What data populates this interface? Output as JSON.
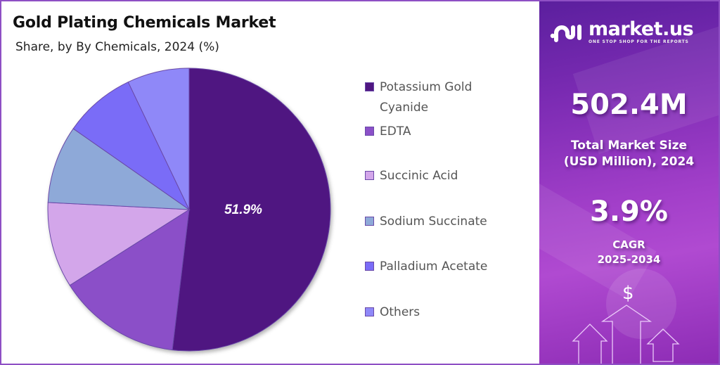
{
  "header": {
    "title": "Gold Plating Chemicals Market",
    "subtitle": "Share, by By Chemicals, 2024 (%)"
  },
  "chart_data": {
    "type": "pie",
    "title": "Gold Plating Chemicals Market",
    "subtitle": "Share, by By Chemicals, 2024 (%)",
    "categories": [
      "Potassium Gold Cyanide",
      "EDTA",
      "Succinic Acid",
      "Sodium Succinate",
      "Palladium Acetate",
      "Others"
    ],
    "values": [
      51.9,
      14.1,
      9.8,
      8.9,
      8.2,
      7.1
    ],
    "colors": [
      "#4f1681",
      "#8b50c8",
      "#d3a6ea",
      "#8ea9d8",
      "#7a6cf7",
      "#8f88f8"
    ],
    "data_labels": [
      "51.9%",
      "",
      "",
      "",
      "",
      ""
    ],
    "legend_position": "right",
    "start_angle_deg": 0,
    "direction": "clockwise"
  },
  "legend": {
    "items": [
      {
        "label_line1": "Potassium Gold",
        "label_line2": "Cyanide",
        "color": "#4f1681"
      },
      {
        "label_line1": "EDTA",
        "label_line2": "",
        "color": "#8b50c8"
      },
      {
        "label_line1": "Succinic Acid",
        "label_line2": "",
        "color": "#d3a6ea"
      },
      {
        "label_line1": "Sodium Succinate",
        "label_line2": "",
        "color": "#8ea9d8"
      },
      {
        "label_line1": "Palladium Acetate",
        "label_line2": "",
        "color": "#7a6cf7"
      },
      {
        "label_line1": "Others",
        "label_line2": "",
        "color": "#8f88f8"
      }
    ]
  },
  "brand": {
    "name": "market.us",
    "tagline": "ONE STOP SHOP FOR THE REPORTS"
  },
  "stats": {
    "market_size_value": "502.4M",
    "market_size_label_line1": "Total Market Size",
    "market_size_label_line2": "(USD Million), 2024",
    "cagr_value": "3.9%",
    "cagr_label_line1": "CAGR",
    "cagr_label_line2": "2025-2034",
    "currency_symbol": "$"
  },
  "colors": {
    "frame_border": "#8e4fc4",
    "panel_top": "#5b1f9e",
    "panel_mid": "#a23fc9"
  }
}
